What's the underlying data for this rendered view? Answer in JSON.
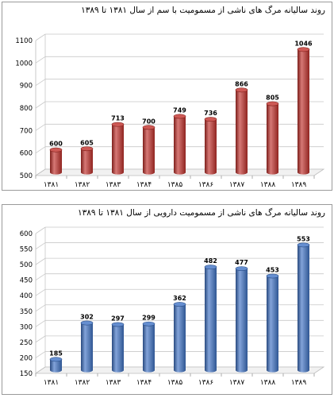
{
  "chart_data": [
    {
      "type": "bar",
      "title": "روند سالیانه مرگ های ناشی از مسمومیت با سم از سال ۱۳۸۱ تا ۱۳۸۹",
      "categories": [
        "۱۳۸۱",
        "۱۳۸۲",
        "۱۳۸۳",
        "۱۳۸۴",
        "۱۳۸۵",
        "۱۳۸۶",
        "۱۳۸۷",
        "۱۳۸۸",
        "۱۳۸۹"
      ],
      "values": [
        600,
        605,
        713,
        700,
        749,
        736,
        866,
        805,
        1046
      ],
      "data_labels": [
        "600",
        "605",
        "713",
        "700",
        "749",
        "736",
        "866",
        "805",
        "1046"
      ],
      "y_ticks": [
        "500",
        "600",
        "700",
        "800",
        "900",
        "1000",
        "1100"
      ],
      "ylim": [
        500,
        1100
      ],
      "grid": true,
      "color": "#c0302a"
    },
    {
      "type": "bar",
      "title": "روند سالیانه مرگ های ناشی از مسمومیت دارویی از سال ۱۳۸۱ تا ۱۳۸۹",
      "categories": [
        "۱۳۸۱",
        "۱۳۸۲",
        "۱۳۸۳",
        "۱۳۸۴",
        "۱۳۸۵",
        "۱۳۸۶",
        "۱۳۸۷",
        "۱۳۸۸",
        "۱۳۸۹"
      ],
      "values": [
        185,
        302,
        297,
        299,
        362,
        482,
        477,
        453,
        553
      ],
      "data_labels": [
        "185",
        "302",
        "297",
        "299",
        "362",
        "482",
        "477",
        "453",
        "553"
      ],
      "y_ticks": [
        "150",
        "200",
        "250",
        "300",
        "350",
        "400",
        "450",
        "500",
        "550",
        "600"
      ],
      "ylim": [
        150,
        600
      ],
      "grid": true,
      "color": "#3f72c4"
    }
  ]
}
